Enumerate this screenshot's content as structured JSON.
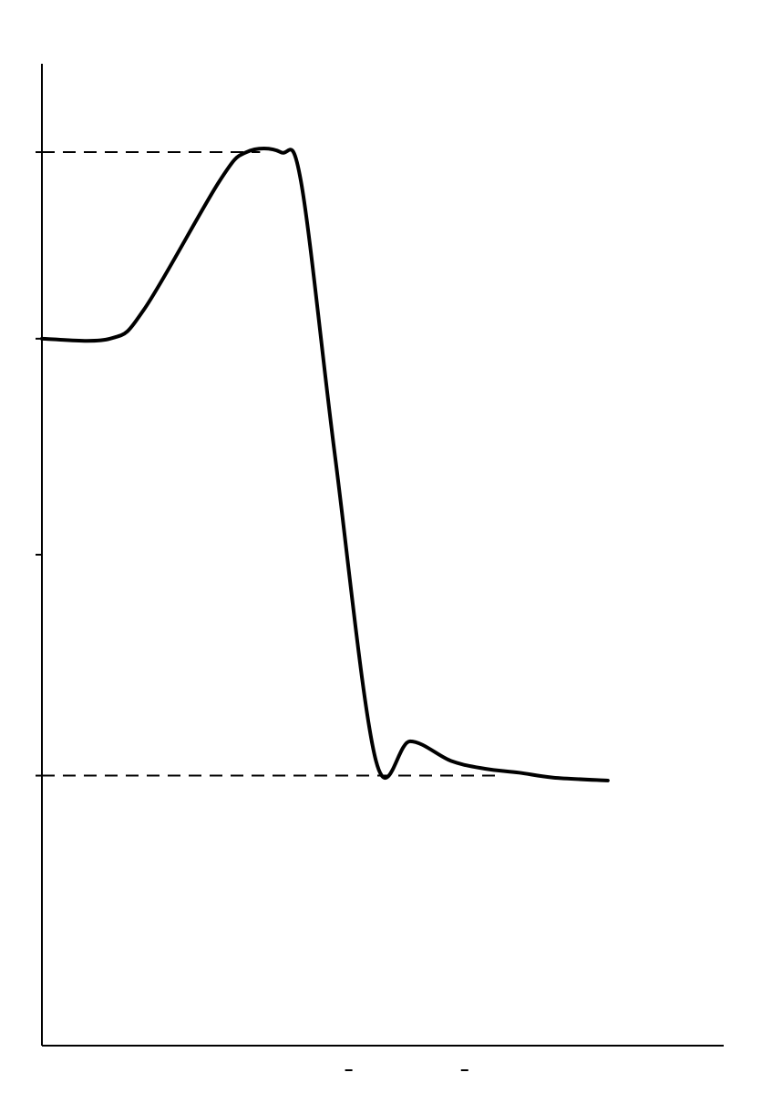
{
  "chart_data": {
    "type": "line",
    "title": "",
    "xlabel": "",
    "ylabel": "",
    "xlim": [
      0,
      10
    ],
    "ylim": [
      0,
      10
    ],
    "grid": false,
    "legend": "none",
    "line_color": "#000000",
    "guide_color": "#000000",
    "y_ticks": [
      2.75,
      5,
      7.2,
      9.1
    ],
    "x_ticks": [
      4.5,
      6.2
    ],
    "guides": [
      {
        "y": 9.1,
        "x_from": 0,
        "x_to": 3.2
      },
      {
        "y": 2.75,
        "x_from": 0,
        "x_to": 6.7
      }
    ],
    "series": [
      {
        "values": [
          [
            0.0,
            7.2
          ],
          [
            1.0,
            7.2
          ],
          [
            1.5,
            7.5
          ],
          [
            2.6,
            8.8
          ],
          [
            3.0,
            9.1
          ],
          [
            3.5,
            9.1
          ],
          [
            3.8,
            8.8
          ],
          [
            4.3,
            6.0
          ],
          [
            4.9,
            2.9
          ],
          [
            5.4,
            3.1
          ],
          [
            6.0,
            2.9
          ],
          [
            6.5,
            2.82
          ],
          [
            7.0,
            2.78
          ],
          [
            7.5,
            2.73
          ],
          [
            8.3,
            2.7
          ]
        ]
      }
    ]
  }
}
